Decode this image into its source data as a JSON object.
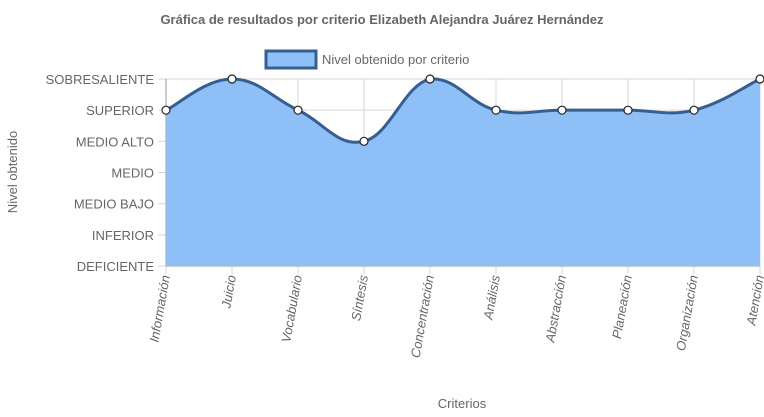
{
  "chart_data": {
    "type": "area",
    "title": "Gráfica de resultados por criterio Elizabeth Alejandra Juárez Hernández",
    "xlabel": "Criterios",
    "ylabel": "Nivel obtenido",
    "y_levels": [
      "DEFICIENTE",
      "INFERIOR",
      "MEDIO BAJO",
      "MEDIO",
      "MEDIO ALTO",
      "SUPERIOR",
      "SOBRESALIENTE"
    ],
    "categories": [
      "Información",
      "Juicio",
      "Vocabulario",
      "Síntesis",
      "Concentración",
      "Análisis",
      "Abstracción",
      "Planeación",
      "Organización",
      "Atención"
    ],
    "series": [
      {
        "name": "Nivel obtenido por criterio",
        "values": [
          "SUPERIOR",
          "SOBRESALIENTE",
          "SUPERIOR",
          "MEDIO ALTO",
          "SOBRESALIENTE",
          "SUPERIOR",
          "SUPERIOR",
          "SUPERIOR",
          "SUPERIOR",
          "SOBRESALIENTE"
        ],
        "fill_color": "#8ec0f7",
        "line_color": "#365f91"
      }
    ],
    "legend_position": "top",
    "grid": true
  }
}
